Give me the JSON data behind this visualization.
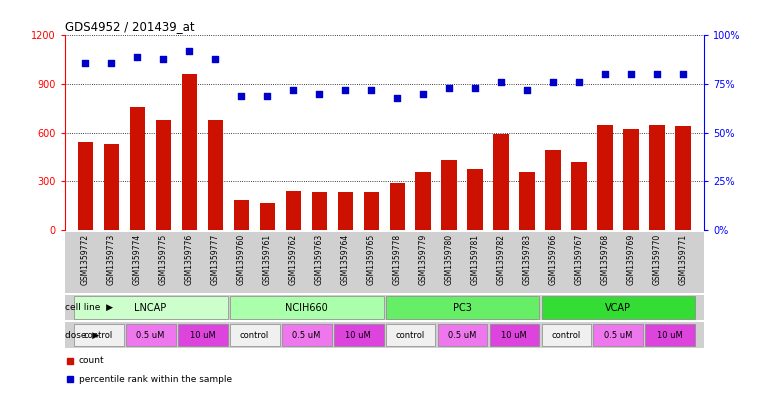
{
  "title": "GDS4952 / 201439_at",
  "samples": [
    "GSM1359772",
    "GSM1359773",
    "GSM1359774",
    "GSM1359775",
    "GSM1359776",
    "GSM1359777",
    "GSM1359760",
    "GSM1359761",
    "GSM1359762",
    "GSM1359763",
    "GSM1359764",
    "GSM1359765",
    "GSM1359778",
    "GSM1359779",
    "GSM1359780",
    "GSM1359781",
    "GSM1359782",
    "GSM1359783",
    "GSM1359766",
    "GSM1359767",
    "GSM1359768",
    "GSM1359769",
    "GSM1359770",
    "GSM1359771"
  ],
  "counts": [
    545,
    530,
    760,
    680,
    960,
    680,
    185,
    165,
    240,
    235,
    235,
    235,
    290,
    360,
    430,
    375,
    590,
    360,
    490,
    420,
    650,
    620,
    650,
    640
  ],
  "percentiles": [
    86,
    86,
    89,
    88,
    92,
    88,
    69,
    69,
    72,
    70,
    72,
    72,
    68,
    70,
    73,
    73,
    76,
    72,
    76,
    76,
    80,
    80,
    80,
    80
  ],
  "cell_lines": [
    {
      "name": "LNCAP",
      "start": 0,
      "end": 6,
      "color": "#ccffcc"
    },
    {
      "name": "NCIH660",
      "start": 6,
      "end": 12,
      "color": "#aaffaa"
    },
    {
      "name": "PC3",
      "start": 12,
      "end": 18,
      "color": "#66ee66"
    },
    {
      "name": "VCAP",
      "start": 18,
      "end": 24,
      "color": "#33dd33"
    }
  ],
  "dose_groups": [
    {
      "label": "control",
      "start": 0,
      "end": 2,
      "color": "#f0f0f0"
    },
    {
      "label": "0.5 uM",
      "start": 2,
      "end": 4,
      "color": "#ee77ee"
    },
    {
      "label": "10 uM",
      "start": 4,
      "end": 6,
      "color": "#dd44dd"
    },
    {
      "label": "control",
      "start": 6,
      "end": 8,
      "color": "#f0f0f0"
    },
    {
      "label": "0.5 uM",
      "start": 8,
      "end": 10,
      "color": "#ee77ee"
    },
    {
      "label": "10 uM",
      "start": 10,
      "end": 12,
      "color": "#dd44dd"
    },
    {
      "label": "control",
      "start": 12,
      "end": 14,
      "color": "#f0f0f0"
    },
    {
      "label": "0.5 uM",
      "start": 14,
      "end": 16,
      "color": "#ee77ee"
    },
    {
      "label": "10 uM",
      "start": 16,
      "end": 18,
      "color": "#dd44dd"
    },
    {
      "label": "control",
      "start": 18,
      "end": 20,
      "color": "#f0f0f0"
    },
    {
      "label": "0.5 uM",
      "start": 20,
      "end": 22,
      "color": "#ee77ee"
    },
    {
      "label": "10 uM",
      "start": 22,
      "end": 24,
      "color": "#dd44dd"
    }
  ],
  "bar_color": "#cc1100",
  "dot_color": "#0000cc",
  "ylim_left": [
    0,
    1200
  ],
  "ylim_right": [
    0,
    100
  ],
  "yticks_left": [
    0,
    300,
    600,
    900,
    1200
  ],
  "yticks_right": [
    0,
    25,
    50,
    75,
    100
  ],
  "bg_color": "#ffffff",
  "label_bg": "#d8d8d8",
  "cell_bg": "#c8c8c8",
  "dose_bg": "#c8c8c8"
}
